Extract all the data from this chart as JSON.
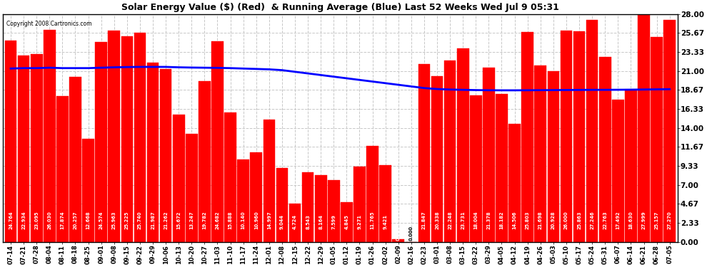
{
  "title": "Solar Energy Value ($) (Red)  & Running Average (Blue) Last 52 Weeks Wed Jul 9 05:31",
  "copyright": "Copyright 2008 Cartronics.com",
  "bar_color": "#ff0000",
  "avg_line_color": "#0000ff",
  "background_color": "#ffffff",
  "plot_bg_color": "#ffffff",
  "grid_color": "#c8c8c8",
  "ylim": [
    0.0,
    28.0
  ],
  "yticks": [
    0.0,
    2.33,
    4.67,
    7.0,
    9.33,
    11.67,
    14.0,
    16.33,
    18.67,
    21.0,
    23.33,
    25.67,
    28.0
  ],
  "dates": [
    "07-14",
    "07-21",
    "07-28",
    "08-04",
    "08-11",
    "08-18",
    "08-25",
    "09-01",
    "09-08",
    "09-15",
    "09-22",
    "09-29",
    "10-06",
    "10-13",
    "10-20",
    "10-27",
    "11-03",
    "11-10",
    "11-17",
    "11-24",
    "12-01",
    "12-08",
    "12-15",
    "12-22",
    "12-29",
    "01-05",
    "01-12",
    "01-19",
    "01-26",
    "02-02",
    "02-09",
    "02-16",
    "02-23",
    "03-01",
    "03-08",
    "03-15",
    "03-22",
    "03-29",
    "04-05",
    "04-12",
    "04-19",
    "04-26",
    "05-03",
    "05-10",
    "05-17",
    "05-24",
    "05-31",
    "06-07",
    "06-14",
    "06-21",
    "06-28",
    "07-05"
  ],
  "values": [
    24.764,
    22.934,
    23.095,
    26.03,
    17.874,
    20.257,
    12.668,
    24.574,
    25.963,
    25.225,
    25.74,
    21.987,
    21.262,
    15.672,
    13.247,
    19.782,
    24.682,
    15.888,
    10.14,
    10.96,
    14.997,
    9.044,
    4.724,
    8.543,
    8.164,
    7.599,
    4.845,
    9.271,
    11.765,
    9.421,
    0.317,
    0.0,
    21.847,
    20.338,
    22.248,
    23.731,
    18.004,
    21.378,
    18.182,
    14.506,
    25.803,
    21.698,
    20.928,
    26.0,
    25.863,
    27.246,
    22.763,
    17.492,
    18.63,
    27.999,
    25.157,
    27.27
  ],
  "running_avg": [
    21.3,
    21.35,
    21.35,
    21.4,
    21.35,
    21.35,
    21.35,
    21.4,
    21.45,
    21.48,
    21.5,
    21.5,
    21.5,
    21.45,
    21.42,
    21.4,
    21.38,
    21.35,
    21.3,
    21.25,
    21.2,
    21.1,
    20.9,
    20.7,
    20.5,
    20.3,
    20.1,
    19.9,
    19.7,
    19.5,
    19.3,
    19.1,
    18.9,
    18.78,
    18.72,
    18.68,
    18.65,
    18.63,
    18.62,
    18.62,
    18.63,
    18.64,
    18.65,
    18.66,
    18.67,
    18.68,
    18.68,
    18.69,
    18.7,
    18.72,
    18.74,
    18.76
  ]
}
